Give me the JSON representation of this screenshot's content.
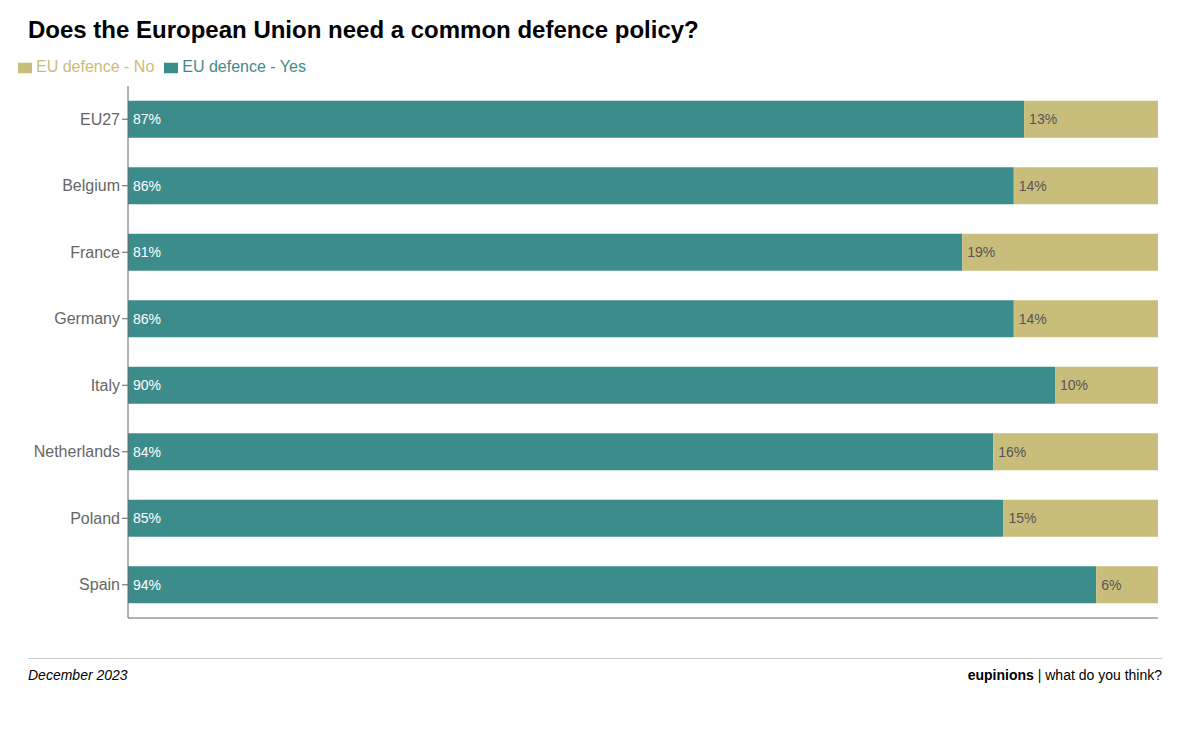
{
  "chart_data": {
    "type": "bar",
    "title": "Does the European Union need a common defence policy?",
    "orientation": "horizontal",
    "stacked": true,
    "data_labels": true,
    "grid": false,
    "legend": "upper left",
    "tick_labels": "y",
    "categories": [
      "EU27",
      "Belgium",
      "France",
      "Germany",
      "Italy",
      "Netherlands",
      "Poland",
      "Spain"
    ],
    "series": [
      {
        "name": "EU defence - Yes",
        "color": "#3d8c8c",
        "values": [
          87,
          86,
          81,
          86,
          90,
          84,
          85,
          94
        ],
        "value_labels": [
          "87%",
          "86%",
          "81%",
          "86%",
          "90%",
          "84%",
          "85%",
          "94%"
        ]
      },
      {
        "name": "EU defence - No",
        "color": "#c9bd7b",
        "values": [
          13,
          14,
          19,
          14,
          10,
          16,
          15,
          6
        ],
        "value_labels": [
          "13%",
          "14%",
          "19%",
          "14%",
          "10%",
          "16%",
          "15%",
          "6%"
        ]
      }
    ],
    "xlim": [
      0,
      100
    ],
    "annotations": [
      "December 2023",
      "eupinions",
      " | what do you think?"
    ]
  }
}
